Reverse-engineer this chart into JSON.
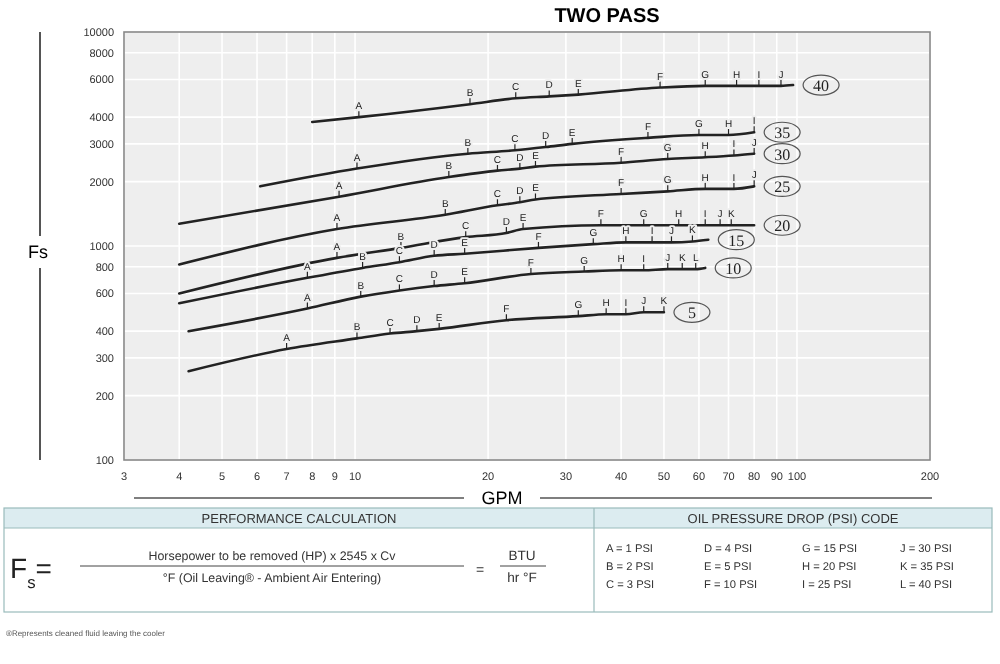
{
  "chart_data": {
    "type": "line",
    "title": "TWO PASS",
    "xlabel": "GPM",
    "ylabel": "Fs",
    "log": "xy",
    "grid": true,
    "xlim": [
      3,
      200
    ],
    "ylim": [
      100,
      10000
    ],
    "xticks": [
      3,
      4,
      5,
      6,
      7,
      8,
      {
        "value": 9,
        "label": "9"
      },
      10,
      20,
      30,
      40,
      50,
      60,
      70,
      80,
      90,
      100,
      200
    ],
    "yticks": [
      100,
      200,
      300,
      400,
      600,
      800,
      1000,
      2000,
      3000,
      4000,
      6000,
      8000,
      10000
    ],
    "series": [
      {
        "name": "40",
        "color": "#222222",
        "x": [
          8,
          10.2,
          18.2,
          23.1,
          27.5,
          32,
          49,
          62,
          73,
          82,
          92,
          98
        ],
        "values": [
          3800,
          4000,
          4600,
          4900,
          5000,
          5100,
          5500,
          5600,
          5600,
          5600,
          5600,
          5650
        ],
        "value_labels": [
          null,
          "A",
          "B",
          "C",
          "D",
          "E",
          "F",
          "G",
          "H",
          "I",
          "J",
          null
        ]
      },
      {
        "name": "35",
        "color": "#222222",
        "x": [
          6.1,
          10.1,
          18,
          23,
          27,
          31,
          46,
          60,
          70,
          80
        ],
        "values": [
          1900,
          2300,
          2700,
          2800,
          2900,
          3000,
          3200,
          3300,
          3300,
          3400
        ],
        "value_labels": [
          null,
          "A",
          "B",
          "C",
          "D",
          "E",
          "F",
          "G",
          "H",
          "I"
        ]
      },
      {
        "name": "30",
        "color": "#222222",
        "x": [
          4,
          9.2,
          16.3,
          21,
          23.6,
          25.6,
          40,
          51,
          62,
          72,
          80
        ],
        "values": [
          1270,
          1700,
          2100,
          2250,
          2300,
          2350,
          2450,
          2550,
          2600,
          2650,
          2700
        ],
        "value_labels": [
          null,
          "A",
          "B",
          "C",
          "D",
          "E",
          "F",
          "G",
          "H",
          "I",
          "J"
        ]
      },
      {
        "name": "25",
        "color": "#222222",
        "x": [
          4,
          9.1,
          16,
          21,
          23.6,
          25.6,
          40,
          51,
          62,
          72,
          80
        ],
        "values": [
          820,
          1200,
          1400,
          1550,
          1600,
          1650,
          1750,
          1800,
          1850,
          1850,
          1900
        ],
        "value_labels": [
          null,
          "A",
          "B",
          "C",
          "D",
          "E",
          "F",
          "G",
          "H",
          "I",
          "J"
        ]
      },
      {
        "name": "20",
        "color": "#222222",
        "x": [
          4,
          9.1,
          12.7,
          17.8,
          22,
          24,
          36,
          45,
          54,
          62,
          67,
          71,
          80
        ],
        "values": [
          600,
          880,
          980,
          1100,
          1150,
          1200,
          1250,
          1250,
          1250,
          1250,
          1250,
          1250,
          1250
        ],
        "value_labels": [
          null,
          "A",
          "B",
          "C",
          "D",
          "E",
          "F",
          "G",
          "H",
          "I",
          "J",
          "K",
          null
        ]
      },
      {
        "name": "15",
        "color": "#222222",
        "x": [
          4,
          7.8,
          10.4,
          12.6,
          15.1,
          17.7,
          26,
          34.6,
          41,
          47,
          52,
          58,
          63
        ],
        "values": [
          540,
          710,
          790,
          840,
          900,
          920,
          980,
          1020,
          1040,
          1040,
          1040,
          1050,
          1070
        ],
        "value_labels": [
          null,
          "A",
          "B",
          "C",
          "D",
          "E",
          "F",
          "G",
          "H",
          "I",
          "J",
          "K",
          null
        ]
      },
      {
        "name": "10",
        "color": "#222222",
        "x": [
          4.2,
          7.8,
          10.3,
          12.6,
          15.1,
          17.7,
          25,
          33,
          40,
          45,
          51,
          55,
          59,
          62
        ],
        "values": [
          400,
          510,
          580,
          620,
          650,
          670,
          740,
          760,
          770,
          770,
          780,
          780,
          780,
          790
        ],
        "value_labels": [
          null,
          "A",
          "B",
          "C",
          "D",
          "E",
          "F",
          "G",
          "H",
          "I",
          "J",
          "K",
          "L",
          null
        ]
      },
      {
        "name": "5",
        "color": "#222222",
        "x": [
          4.2,
          7,
          10.1,
          12,
          13.8,
          15.5,
          22,
          32,
          37,
          41,
          45,
          50
        ],
        "values": [
          260,
          330,
          370,
          390,
          400,
          410,
          450,
          470,
          480,
          480,
          490,
          490
        ],
        "value_labels": [
          null,
          "A",
          "B",
          "C",
          "D",
          "E",
          "F",
          "G",
          "H",
          "I",
          "J",
          "K"
        ]
      }
    ],
    "annotations": [
      "PERFORMANCE CALCULATION",
      "OIL PRESSURE DROP (PSI) CODE",
      "F$_{s}$=",
      "Horsepower to be removed (HP) x 2545 x Cv",
      "°F (Oil Leaving® - Ambient Air Entering)",
      "=",
      "BTU",
      "hr °F",
      "A = 1 PSI",
      "B = 2 PSI",
      "C = 3 PSI",
      "D = 4 PSI",
      "E = 5 PSI",
      "F = 10 PSI",
      "G = 15 PSI",
      "H = 20 PSI",
      "I = 25 PSI",
      "J = 30 PSI",
      "K = 35 PSI",
      "L = 40 PSI",
      "®Represents cleaned fluid leaving the cooler"
    ]
  }
}
